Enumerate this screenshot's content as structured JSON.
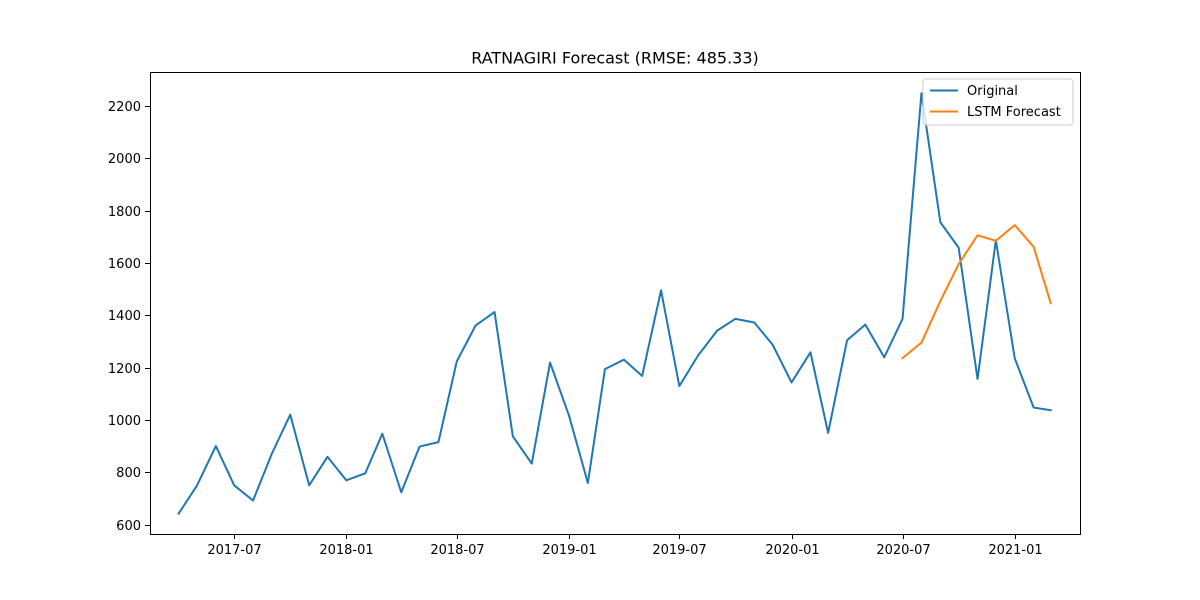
{
  "chart_data": {
    "type": "line",
    "title": "RATNAGIRI Forecast (RMSE: 485.33)",
    "xlabel": "",
    "ylabel": "",
    "x_tick_labels": [
      "2017-07",
      "2018-01",
      "2018-07",
      "2019-01",
      "2019-07",
      "2020-01",
      "2020-07",
      "2021-01"
    ],
    "x_tick_dates": [
      "2017-07-01",
      "2018-01-01",
      "2018-07-01",
      "2019-01-01",
      "2019-07-01",
      "2020-01-01",
      "2020-07-01",
      "2021-01-01"
    ],
    "y_ticks": [
      600,
      800,
      1000,
      1200,
      1400,
      1600,
      1800,
      2000,
      2200
    ],
    "xlim": [
      "2017-02-13",
      "2021-04-18"
    ],
    "ylim": [
      565,
      2330
    ],
    "grid": false,
    "legend_position": "top-right",
    "series": [
      {
        "name": "Original",
        "color": "#1f77b4",
        "x": [
          "2017-04-01",
          "2017-05-01",
          "2017-06-01",
          "2017-07-01",
          "2017-08-01",
          "2017-09-01",
          "2017-10-01",
          "2017-11-01",
          "2017-12-01",
          "2018-01-01",
          "2018-02-01",
          "2018-03-01",
          "2018-04-01",
          "2018-05-01",
          "2018-06-01",
          "2018-07-01",
          "2018-08-01",
          "2018-09-01",
          "2018-10-01",
          "2018-11-01",
          "2018-12-01",
          "2019-01-01",
          "2019-02-01",
          "2019-03-01",
          "2019-04-01",
          "2019-05-01",
          "2019-06-01",
          "2019-07-01",
          "2019-08-01",
          "2019-09-01",
          "2019-10-01",
          "2019-11-01",
          "2019-12-01",
          "2020-01-01",
          "2020-02-01",
          "2020-03-01",
          "2020-04-01",
          "2020-05-01",
          "2020-06-01",
          "2020-07-01",
          "2020-08-01",
          "2020-09-01",
          "2020-10-01",
          "2020-11-01",
          "2020-12-01",
          "2021-01-01",
          "2021-02-01",
          "2021-03-01"
        ],
        "values": [
          643,
          750,
          901,
          751,
          693,
          873,
          1021,
          751,
          860,
          770,
          797,
          948,
          724,
          899,
          916,
          1224,
          1362,
          1413,
          938,
          834,
          1220,
          1018,
          760,
          1195,
          1231,
          1169,
          1496,
          1130,
          1248,
          1342,
          1387,
          1373,
          1288,
          1144,
          1259,
          951,
          1305,
          1365,
          1240,
          1387,
          2249,
          1756,
          1659,
          1157,
          1687,
          1236,
          1048,
          1038
        ]
      },
      {
        "name": "LSTM Forecast",
        "color": "#ff7f0e",
        "x": [
          "2020-07-01",
          "2020-08-01",
          "2020-09-01",
          "2020-10-01",
          "2020-11-01",
          "2020-12-01",
          "2021-01-01",
          "2021-02-01",
          "2021-03-01"
        ],
        "values": [
          1237,
          1296,
          1455,
          1596,
          1706,
          1685,
          1745,
          1662,
          1446
        ]
      }
    ]
  }
}
